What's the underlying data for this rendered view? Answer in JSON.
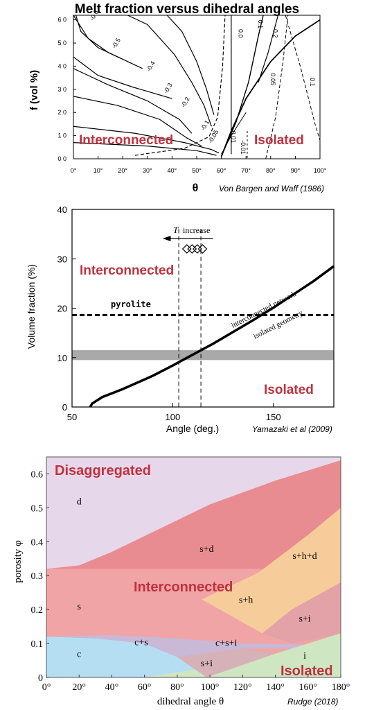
{
  "colors": {
    "region_label": "#c0313e",
    "band": "#a9a9a9"
  },
  "chart_data": [
    {
      "type": "line",
      "title": "Melt fraction versus dihedral angles",
      "xlabel": "θ",
      "ylabel": "f  (vol %)",
      "xlim": [
        0,
        100
      ],
      "ylim": [
        0,
        6.2
      ],
      "x_ticks": [
        "0°",
        "10°",
        "20°",
        "30°",
        "40°",
        "50°",
        "60°",
        "70°",
        "80°",
        "90°",
        "100°"
      ],
      "y_ticks": [
        {
          "v": 0,
          "label": "0 0"
        },
        {
          "v": 1,
          "label": "1 0"
        },
        {
          "v": 2,
          "label": "2.0"
        },
        {
          "v": 3,
          "label": "3 0"
        },
        {
          "v": 4,
          "label": "4 0"
        },
        {
          "v": 5,
          "label": "5 0"
        },
        {
          "v": 6,
          "label": "6 0"
        }
      ],
      "contour_labels": [
        {
          "text": "-0.6",
          "x": 8,
          "y": 5.95
        },
        {
          "text": "-0.5",
          "x": 17,
          "y": 4.75
        },
        {
          "text": "-0.4",
          "x": 31,
          "y": 3.75
        },
        {
          "text": "-0.3",
          "x": 38,
          "y": 2.8
        },
        {
          "text": "-0.2",
          "x": 45,
          "y": 2.2
        },
        {
          "text": "-0.1",
          "x": 53,
          "y": 1.2
        },
        {
          "text": "-0.05",
          "x": 56,
          "y": 0.65
        },
        {
          "text": "0.0",
          "x": 67,
          "y": 5.6
        },
        {
          "text": "0.1",
          "x": 75,
          "y": 6.0
        },
        {
          "text": "0.2",
          "x": 81,
          "y": 5.6
        },
        {
          "text": "0.05",
          "x": 80,
          "y": 3.7
        },
        {
          "text": "0.1",
          "x": 96,
          "y": 3.5
        },
        {
          "text": "-0.01",
          "x": 64,
          "y": 1.3
        },
        {
          "text": "-0.01",
          "x": 68,
          "y": 0.8
        }
      ],
      "annotations": [
        "Interconnected",
        "Isolated"
      ],
      "source": "Von Bargen and Waff (1986)"
    },
    {
      "type": "line",
      "xlabel": "Angle (deg.)",
      "ylabel": "Volume fraction (%)",
      "xlim": [
        50,
        180
      ],
      "ylim": [
        0,
        40
      ],
      "x_ticks": [
        50,
        100,
        150
      ],
      "y_ticks": [
        0,
        10,
        20,
        30,
        40
      ],
      "series": [
        {
          "x": [
            59,
            60,
            65,
            75,
            90,
            100,
            110,
            120,
            130,
            140,
            150,
            160,
            170,
            180
          ],
          "y": [
            0,
            0.7,
            2,
            3.6,
            6.3,
            8.4,
            10.6,
            12.8,
            15.2,
            17.6,
            20.1,
            22.8,
            25.5,
            28.5
          ]
        }
      ],
      "pyrolite_line": 18.6,
      "pyrolite_label": "pyrolite",
      "band": [
        9.5,
        11.5
      ],
      "vlines": [
        103,
        114
      ],
      "T_label": "T",
      "increase_label": "increase",
      "curve_label_above": "interconnected network",
      "curve_label_below": "isolated geometry",
      "annotations": [
        "Interconnected",
        "Isolated"
      ],
      "source": "Yamazaki et al (2009)"
    },
    {
      "type": "area",
      "xlabel": "dihedral angle θ",
      "ylabel": "porosity φ",
      "xlim": [
        0,
        180
      ],
      "ylim": [
        0,
        0.65
      ],
      "x_ticks": [
        "0°",
        "20°",
        "40°",
        "60°",
        "80°",
        "100°",
        "120°",
        "140°",
        "160°",
        "180°"
      ],
      "y_ticks": [
        "0",
        "0.1",
        "0.2",
        "0.3",
        "0.4",
        "0.5",
        "0.6"
      ],
      "region_labels": [
        {
          "text": "d",
          "x": 20,
          "y": 0.51
        },
        {
          "text": "s+d",
          "x": 98,
          "y": 0.37
        },
        {
          "text": "s+h+d",
          "x": 158,
          "y": 0.35
        },
        {
          "text": "s+h",
          "x": 122,
          "y": 0.22
        },
        {
          "text": "s",
          "x": 20,
          "y": 0.2
        },
        {
          "text": "s+i",
          "x": 158,
          "y": 0.165
        },
        {
          "text": "c+s",
          "x": 58,
          "y": 0.095
        },
        {
          "text": "c+s+i",
          "x": 110,
          "y": 0.093
        },
        {
          "text": "c",
          "x": 20,
          "y": 0.06
        },
        {
          "text": "s+i",
          "x": 98,
          "y": 0.033
        },
        {
          "text": "i",
          "x": 158,
          "y": 0.055
        }
      ],
      "annotations": [
        "Disaggregated",
        "Interconnected",
        "Isolated"
      ],
      "source": "Rudge (2018)"
    }
  ]
}
